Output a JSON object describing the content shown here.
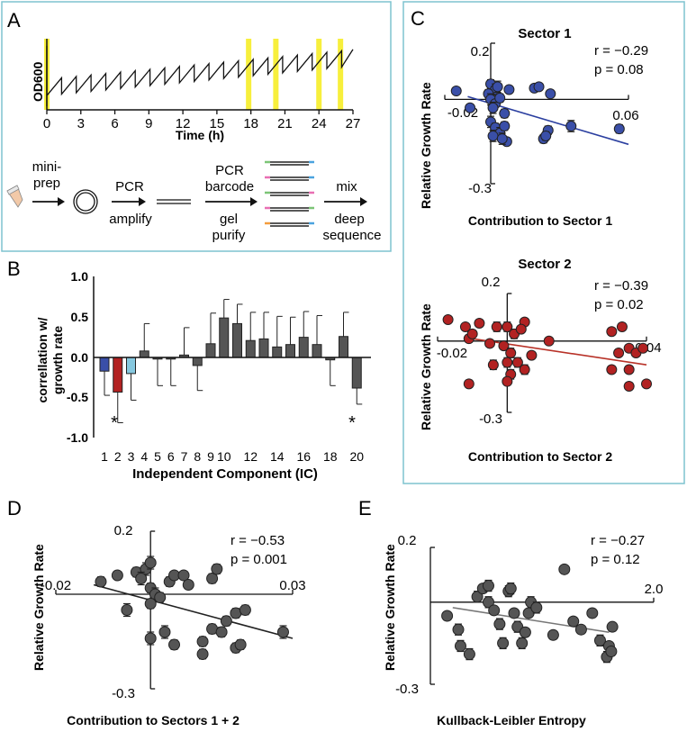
{
  "panels": {
    "A": {
      "letter": "A",
      "ylabel": "OD600",
      "xlabel": "Time (h)",
      "xticks": [
        "0",
        "3",
        "6",
        "9",
        "12",
        "15",
        "18",
        "21",
        "24",
        "27"
      ],
      "time_range": [
        0,
        27
      ],
      "highlight_times": [
        0,
        17.8,
        20.2,
        24,
        25.9
      ],
      "highlight_color": "#f7ef3c",
      "workflow": {
        "step1": [
          "mini-",
          "prep"
        ],
        "step2_top": "PCR",
        "step2_bottom": "amplify",
        "step3_top": [
          "PCR",
          "barcode"
        ],
        "step3_bottom": [
          "gel",
          "purify"
        ],
        "step4_top": "mix",
        "step4_bottom": [
          "deep",
          "sequence"
        ]
      }
    },
    "B": {
      "letter": "B",
      "ylabel": [
        "correllation w/",
        "growth rate"
      ],
      "xlabel": "Independent Component (IC)",
      "yticks": [
        "1.0",
        "0.5",
        "0.0",
        "-0.5",
        "-1.0"
      ],
      "xtick_labels": [
        "1",
        "2",
        "3",
        "4",
        "5",
        "6",
        "7",
        "8",
        "9",
        "10",
        "12",
        "14",
        "16",
        "18",
        "20"
      ],
      "star_symbol": "*"
    },
    "C": {
      "letter": "C",
      "top": {
        "title": "Sector 1",
        "xlabel": "Contribution to Sector 1",
        "ylabel": "Relative Growth Rate",
        "ytop": "0.2",
        "ybottom": "-0.3",
        "xleft": "-0.02",
        "xright": "0.06",
        "r": "r = −0.29",
        "p": "p =  0.08"
      },
      "bottom": {
        "title": "Sector 2",
        "xlabel": "Contribution to Sector 2",
        "ylabel": "Relative Growth Rate",
        "ytop": "0.2",
        "ybottom": "-0.3",
        "xleft": "-0.02",
        "xright": "0.04",
        "r": "r = −0.39",
        "p": "p =  0.02"
      }
    },
    "D": {
      "letter": "D",
      "xlabel": "Contribution to Sectors 1 + 2",
      "ylabel": "Relative Growth Rate",
      "ytop": "0.2",
      "ybottom": "-0.3",
      "xleft": "-0.02",
      "xright": "0.03",
      "r": "r = −0.53",
      "p": "p =  0.001"
    },
    "E": {
      "letter": "E",
      "xlabel": "Kullback-Leibler Entropy",
      "ylabel": "Relative Growth Rate",
      "ytop": "0.2",
      "ybottom": "-0.3",
      "xright": "2.0",
      "r": "r = −0.27",
      "p": "p =  0.12"
    }
  },
  "colors": {
    "panel_border": "#7ec3cf",
    "blue": "#3a4fa8",
    "red": "#b22222",
    "light_blue": "#86c8df",
    "gray": "#555555",
    "blue_line": "#2b3fa0",
    "red_line": "#b83228",
    "gray_line": "#777777",
    "dark_line": "#222222"
  },
  "chart_data": [
    {
      "type": "bar",
      "panel": "B",
      "title": "",
      "xlabel": "Independent Component (IC)",
      "ylabel": "correllation w/ growth rate",
      "ylim": [
        -1.0,
        1.0
      ],
      "categories": [
        "1",
        "2",
        "3",
        "4",
        "5",
        "6",
        "7",
        "8",
        "9",
        "10",
        "11",
        "12",
        "13",
        "14",
        "15",
        "16",
        "17",
        "18",
        "19",
        "20"
      ],
      "values": [
        -0.17,
        -0.43,
        -0.2,
        0.08,
        -0.02,
        -0.02,
        0.03,
        -0.1,
        0.17,
        0.49,
        0.42,
        0.21,
        0.23,
        0.13,
        0.16,
        0.25,
        0.16,
        -0.03,
        0.26,
        -0.38
      ],
      "errors": [
        0.3,
        0.38,
        0.33,
        0.34,
        0.33,
        0.33,
        0.34,
        0.31,
        0.38,
        0.23,
        0.24,
        0.35,
        0.33,
        0.38,
        0.34,
        0.32,
        0.36,
        0.32,
        0.3,
        0.2
      ],
      "bar_colors": [
        "blue",
        "red",
        "light_blue",
        "gray",
        "gray",
        "gray",
        "gray",
        "gray",
        "gray",
        "gray",
        "gray",
        "gray",
        "gray",
        "gray",
        "gray",
        "gray",
        "gray",
        "gray",
        "gray",
        "gray"
      ],
      "significant": [
        "2",
        "20"
      ]
    },
    {
      "type": "scatter",
      "panel": "C-Sector1",
      "title": "Sector 1",
      "xlabel": "Contribution to Sector 1",
      "ylabel": "Relative Growth Rate",
      "xlim": [
        -0.02,
        0.06
      ],
      "ylim": [
        -0.3,
        0.2
      ],
      "fit": {
        "x": [
          -0.01,
          0.06
        ],
        "y": [
          0.01,
          -0.16
        ]
      },
      "points": [
        [
          -0.015,
          0.03,
          0.012
        ],
        [
          0.0,
          0.055,
          0.015
        ],
        [
          0.002,
          0.035,
          0.02
        ],
        [
          -0.001,
          0.02,
          0.015
        ],
        [
          0.0,
          0.0,
          0.02
        ],
        [
          0.002,
          -0.015,
          0.012
        ],
        [
          0.001,
          -0.03,
          0.02
        ],
        [
          0.004,
          0.005,
          0.015
        ],
        [
          0.003,
          0.045,
          0.02
        ],
        [
          -0.009,
          -0.03,
          0.012
        ],
        [
          0.006,
          -0.05,
          0.015
        ],
        [
          0.008,
          0.035,
          0.01
        ],
        [
          0.0,
          -0.08,
          0.02
        ],
        [
          0.002,
          -0.1,
          0.015
        ],
        [
          0.004,
          -0.12,
          0.02
        ],
        [
          0.006,
          -0.095,
          0.015
        ],
        [
          0.007,
          -0.15,
          0.012
        ],
        [
          0.001,
          -0.13,
          0.02
        ],
        [
          0.005,
          -0.14,
          0.02
        ],
        [
          0.019,
          0.04,
          0.01
        ],
        [
          0.021,
          0.045,
          0.01
        ],
        [
          0.026,
          0.02,
          0.012
        ],
        [
          0.025,
          -0.11,
          0.015
        ],
        [
          0.023,
          -0.14,
          0.015
        ],
        [
          0.024,
          -0.13,
          0.015
        ],
        [
          0.035,
          -0.095,
          0.02
        ],
        [
          0.056,
          -0.105,
          0.015
        ]
      ]
    },
    {
      "type": "scatter",
      "panel": "C-Sector2",
      "title": "Sector 2",
      "xlabel": "Contribution to Sector 2",
      "ylabel": "Relative Growth Rate",
      "xlim": [
        -0.02,
        0.04
      ],
      "ylim": [
        -0.3,
        0.2
      ],
      "fit": {
        "x": [
          -0.01,
          0.04
        ],
        "y": [
          0.01,
          -0.1
        ]
      },
      "points": [
        [
          -0.017,
          0.09,
          0.01
        ],
        [
          -0.012,
          0.06,
          0.012
        ],
        [
          -0.011,
          0.01,
          0.015
        ],
        [
          -0.008,
          0.075,
          0.015
        ],
        [
          -0.01,
          0.03,
          0.015
        ],
        [
          -0.003,
          0.06,
          0.02
        ],
        [
          -0.005,
          -0.01,
          0.015
        ],
        [
          0.0,
          0.06,
          0.02
        ],
        [
          0.002,
          0.03,
          0.02
        ],
        [
          -0.001,
          -0.02,
          0.015
        ],
        [
          0.001,
          -0.05,
          0.02
        ],
        [
          0.005,
          0.08,
          0.015
        ],
        [
          0.004,
          0.05,
          0.015
        ],
        [
          0.0,
          -0.09,
          0.02
        ],
        [
          0.003,
          -0.09,
          0.02
        ],
        [
          -0.004,
          -0.1,
          0.02
        ],
        [
          0.001,
          -0.14,
          0.02
        ],
        [
          0.005,
          -0.12,
          0.02
        ],
        [
          0.0,
          -0.17,
          0.015
        ],
        [
          0.007,
          -0.06,
          0.015
        ],
        [
          -0.011,
          -0.18,
          0.015
        ],
        [
          0.012,
          0.0,
          0.01
        ],
        [
          0.03,
          0.04,
          0.015
        ],
        [
          0.033,
          0.06,
          0.015
        ],
        [
          0.032,
          -0.05,
          0.015
        ],
        [
          0.035,
          -0.03,
          0.015
        ],
        [
          0.037,
          -0.05,
          0.012
        ],
        [
          0.039,
          -0.03,
          0.012
        ],
        [
          0.03,
          -0.12,
          0.015
        ],
        [
          0.035,
          -0.12,
          0.015
        ],
        [
          0.035,
          -0.19,
          0.015
        ],
        [
          0.04,
          -0.18,
          0.012
        ]
      ]
    },
    {
      "type": "scatter",
      "panel": "D",
      "title": "",
      "xlabel": "Contribution to Sectors 1 + 2",
      "ylabel": "Relative Growth Rate",
      "xlim": [
        -0.02,
        0.03
      ],
      "ylim": [
        -0.3,
        0.2
      ],
      "fit": {
        "x": [
          -0.012,
          0.03
        ],
        "y": [
          0.03,
          -0.14
        ]
      },
      "points": [
        [
          -0.0105,
          0.04,
          0.015
        ],
        [
          -0.007,
          0.06,
          0.012
        ],
        [
          -0.003,
          0.07,
          0.015
        ],
        [
          -0.001,
          0.08,
          0.02
        ],
        [
          0.0,
          0.1,
          0.02
        ],
        [
          -0.002,
          0.05,
          0.02
        ],
        [
          0.0,
          0.02,
          0.015
        ],
        [
          0.001,
          0.0,
          0.02
        ],
        [
          0.002,
          -0.01,
          0.015
        ],
        [
          0.004,
          0.04,
          0.015
        ],
        [
          0.005,
          0.06,
          0.01
        ],
        [
          0.007,
          0.06,
          0.01
        ],
        [
          0.008,
          0.03,
          0.012
        ],
        [
          0.013,
          0.05,
          0.015
        ],
        [
          0.014,
          0.08,
          0.015
        ],
        [
          -0.005,
          -0.05,
          0.02
        ],
        [
          0.0,
          -0.03,
          0.015
        ],
        [
          0.003,
          -0.12,
          0.02
        ],
        [
          0.0,
          -0.14,
          0.02
        ],
        [
          0.005,
          -0.16,
          0.015
        ],
        [
          0.011,
          -0.15,
          0.015
        ],
        [
          0.011,
          -0.19,
          0.015
        ],
        [
          0.013,
          -0.11,
          0.015
        ],
        [
          0.015,
          -0.12,
          0.015
        ],
        [
          0.016,
          -0.085,
          0.015
        ],
        [
          0.018,
          -0.17,
          0.015
        ],
        [
          0.019,
          -0.16,
          0.015
        ],
        [
          0.018,
          -0.06,
          0.015
        ],
        [
          0.02,
          -0.05,
          0.015
        ],
        [
          0.028,
          -0.12,
          0.02
        ]
      ]
    },
    {
      "type": "scatter",
      "panel": "E",
      "title": "",
      "xlabel": "Kullback-Leibler Entropy",
      "ylabel": "Relative Growth Rate",
      "xlim": [
        0,
        2.0
      ],
      "ylim": [
        -0.3,
        0.2
      ],
      "fit": {
        "x": [
          0.2,
          1.6
        ],
        "y": [
          -0.02,
          -0.11
        ]
      },
      "points": [
        [
          0.15,
          -0.05,
          0.015
        ],
        [
          0.25,
          -0.1,
          0.02
        ],
        [
          0.27,
          -0.16,
          0.02
        ],
        [
          0.35,
          -0.19,
          0.02
        ],
        [
          0.42,
          0.02,
          0.02
        ],
        [
          0.47,
          0.05,
          0.015
        ],
        [
          0.52,
          0.0,
          0.02
        ],
        [
          0.52,
          0.06,
          0.02
        ],
        [
          0.57,
          -0.03,
          0.015
        ],
        [
          0.62,
          -0.08,
          0.02
        ],
        [
          0.65,
          -0.15,
          0.02
        ],
        [
          0.7,
          0.04,
          0.02
        ],
        [
          0.72,
          0.05,
          0.02
        ],
        [
          0.75,
          -0.04,
          0.015
        ],
        [
          0.78,
          -0.09,
          0.02
        ],
        [
          0.82,
          -0.15,
          0.02
        ],
        [
          0.85,
          -0.11,
          0.015
        ],
        [
          0.88,
          -0.04,
          0.015
        ],
        [
          0.9,
          0.0,
          0.02
        ],
        [
          0.95,
          -0.02,
          0.02
        ],
        [
          1.1,
          -0.12,
          0.015
        ],
        [
          1.2,
          0.12,
          0.012
        ],
        [
          1.28,
          -0.07,
          0.015
        ],
        [
          1.35,
          -0.1,
          0.015
        ],
        [
          1.45,
          -0.04,
          0.015
        ],
        [
          1.52,
          -0.14,
          0.02
        ],
        [
          1.58,
          -0.2,
          0.02
        ],
        [
          1.6,
          -0.16,
          0.015
        ],
        [
          1.63,
          -0.09,
          0.015
        ],
        [
          1.62,
          -0.18,
          0.015
        ]
      ]
    }
  ]
}
